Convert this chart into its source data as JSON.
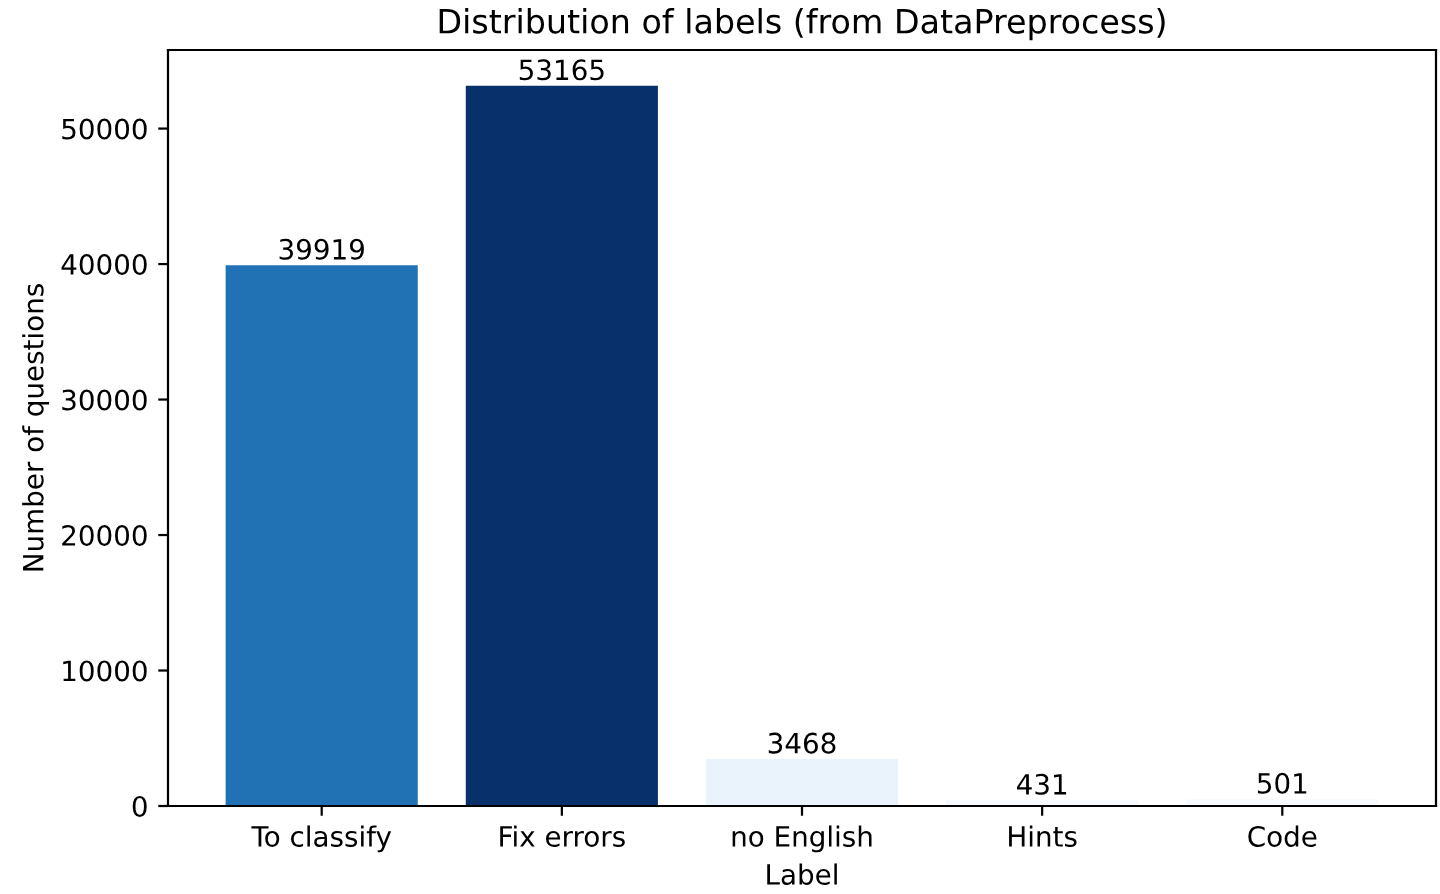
{
  "chart_data": {
    "type": "bar",
    "title": "Distribution of labels (from DataPreprocess)",
    "xlabel": "Label",
    "ylabel": "Number of questions",
    "categories": [
      "To classify",
      "Fix errors",
      "no English",
      "Hints",
      "Code"
    ],
    "values": [
      39919,
      53165,
      3468,
      431,
      501
    ],
    "colors": [
      "#2171b5",
      "#08306b",
      "#eaf2fb",
      "#f5f9fe",
      "#f7fbff"
    ],
    "ylim": [
      0,
      55800
    ],
    "yticks": [
      0,
      10000,
      20000,
      30000,
      40000,
      50000
    ],
    "data_labels": true,
    "grid": false
  }
}
